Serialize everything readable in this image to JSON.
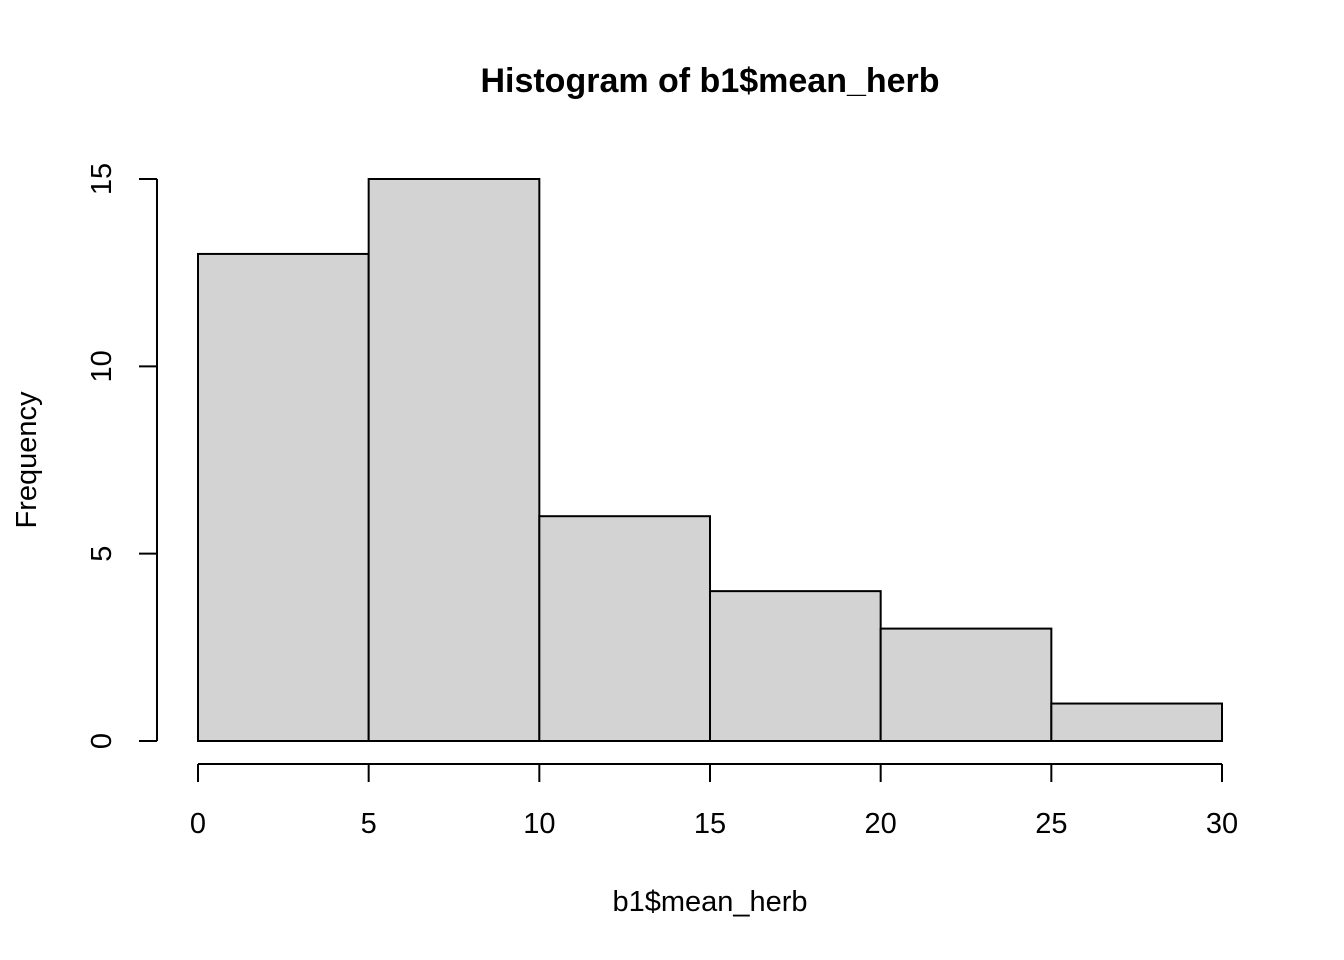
{
  "chart_data": {
    "type": "bar",
    "title": "Histogram of b1$mean_herb",
    "xlabel": "b1$mean_herb",
    "ylabel": "Frequency",
    "bins": [
      {
        "start": 0,
        "end": 5,
        "count": 13
      },
      {
        "start": 5,
        "end": 10,
        "count": 15
      },
      {
        "start": 10,
        "end": 15,
        "count": 6
      },
      {
        "start": 15,
        "end": 20,
        "count": 4
      },
      {
        "start": 20,
        "end": 25,
        "count": 3
      },
      {
        "start": 25,
        "end": 30,
        "count": 1
      }
    ],
    "xlim": [
      0,
      30
    ],
    "ylim": [
      0,
      15
    ],
    "x_ticks": [
      "0",
      "5",
      "10",
      "15",
      "20",
      "25",
      "30"
    ],
    "y_ticks": [
      "0",
      "5",
      "10",
      "15"
    ],
    "bar_color": "#d3d3d3",
    "border_color": "#000000",
    "grid": false,
    "legend": "none"
  }
}
